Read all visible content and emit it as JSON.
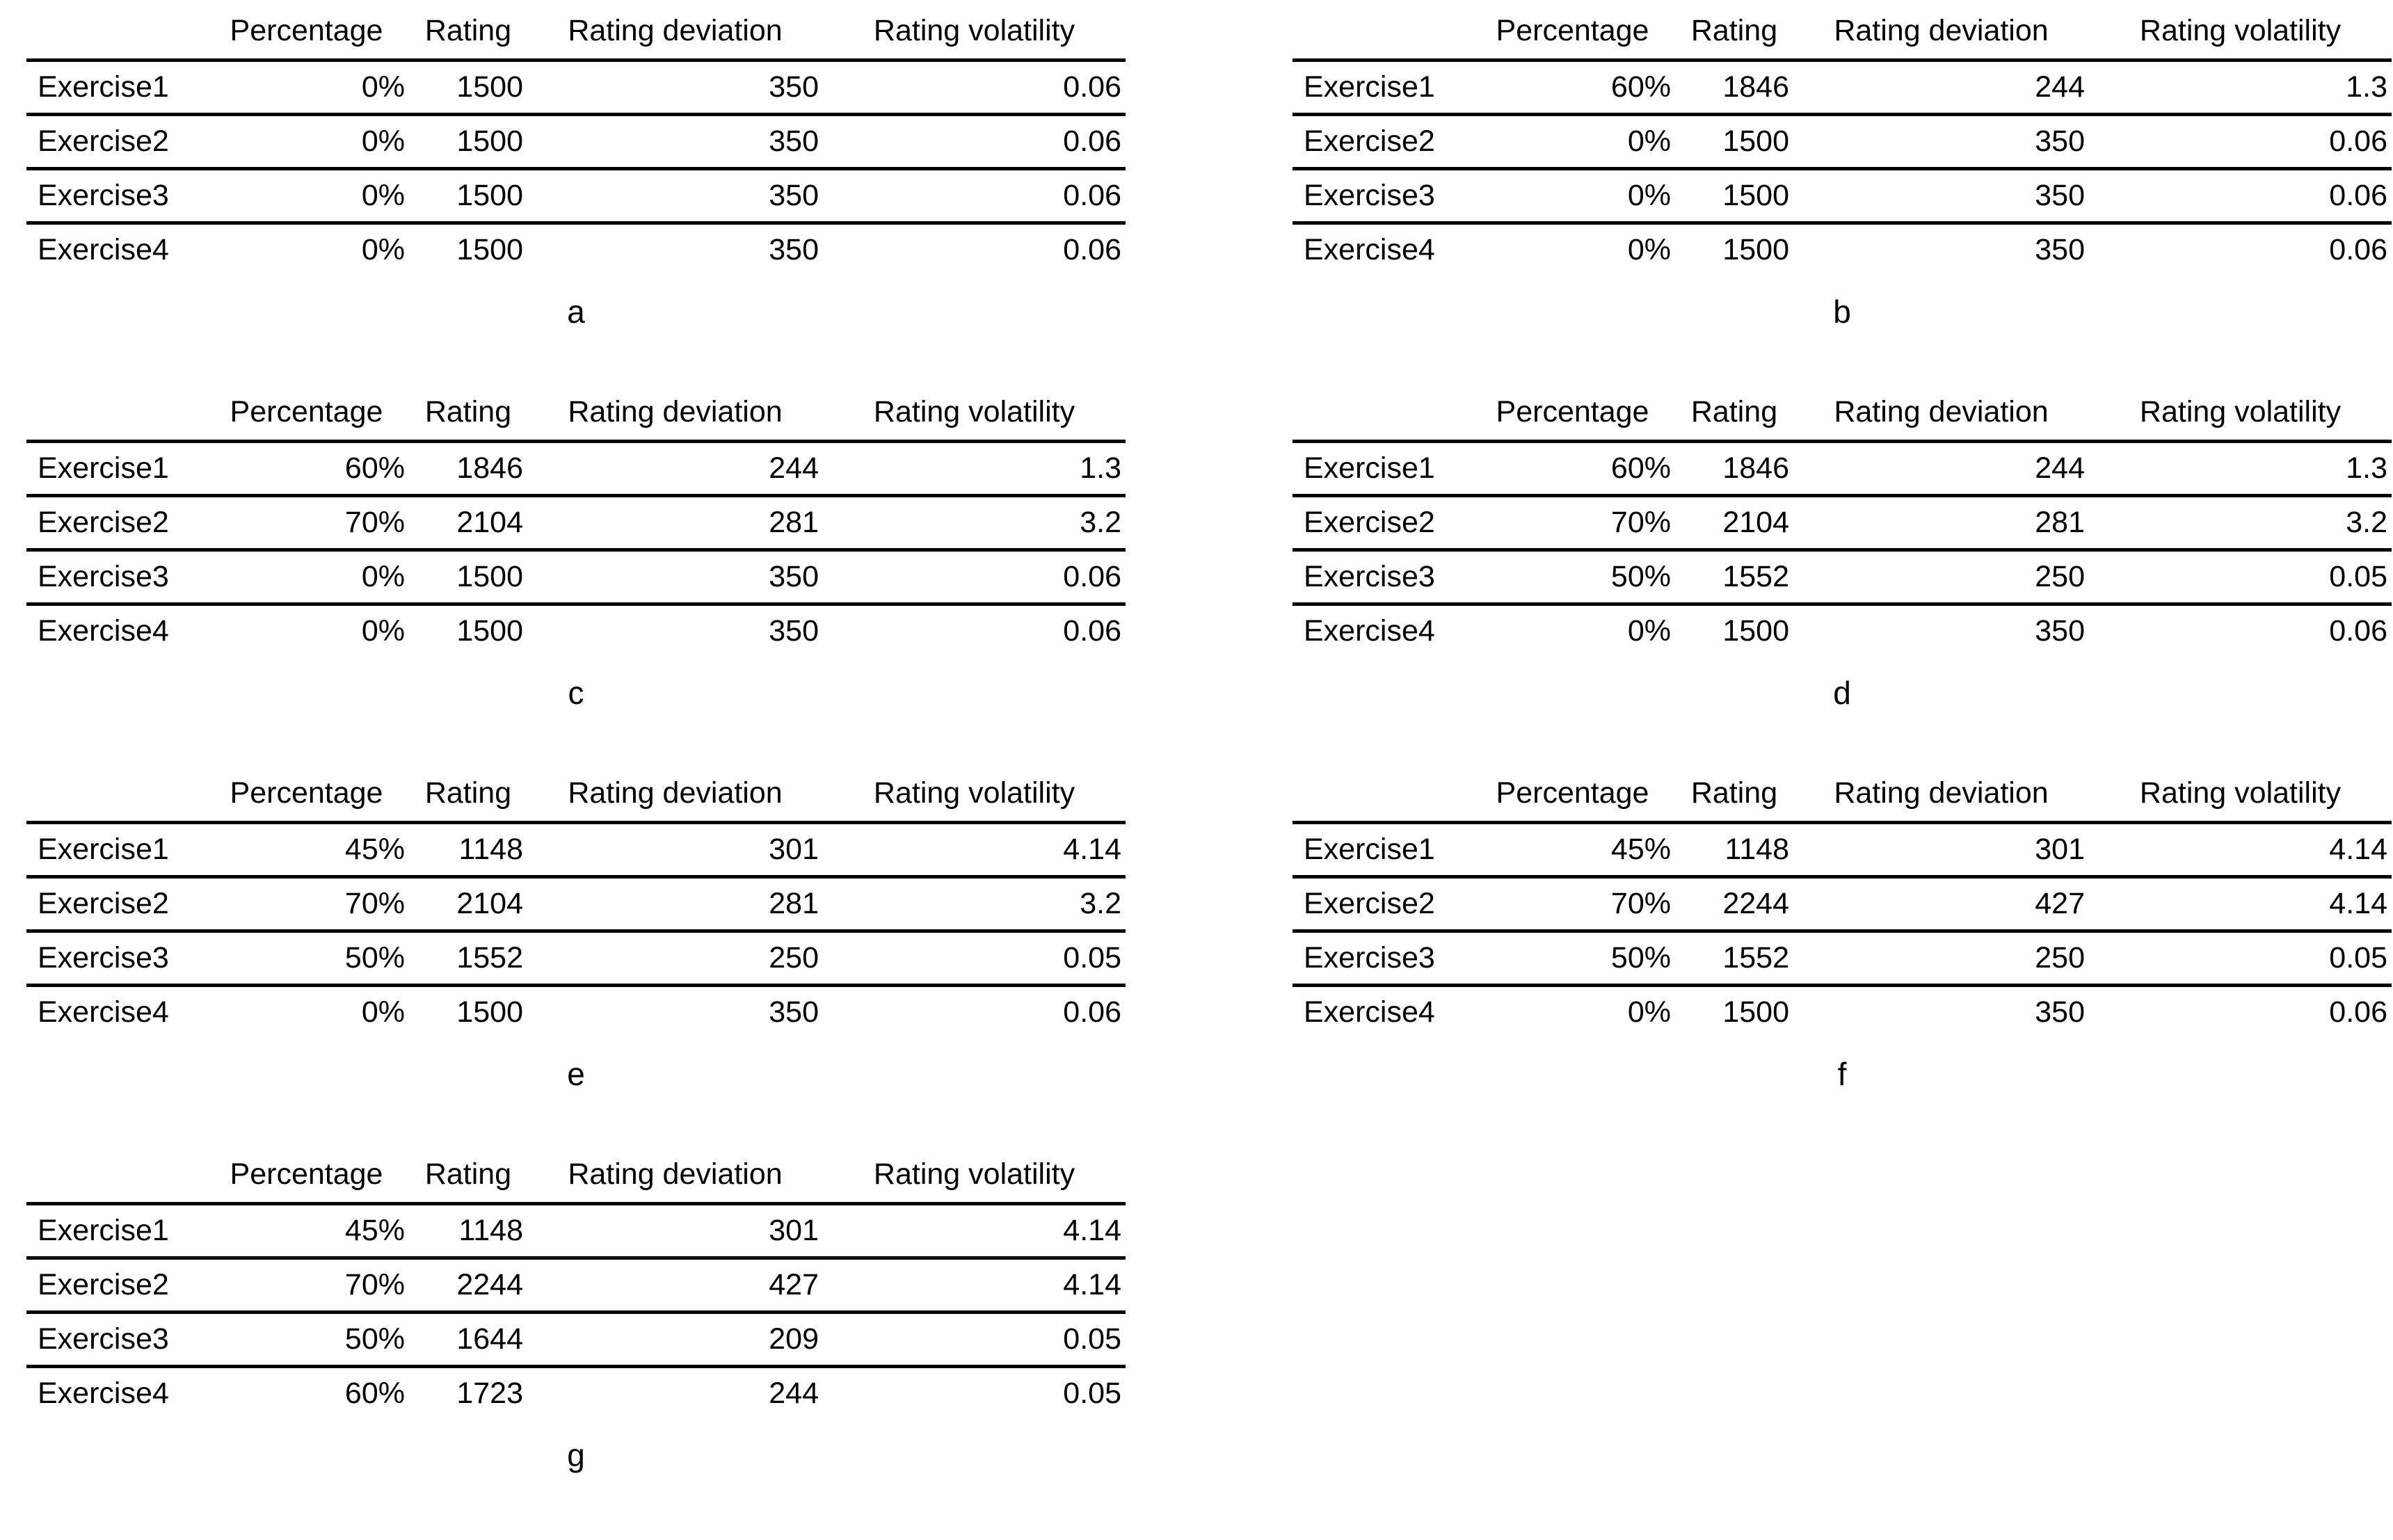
{
  "chart_data": {
    "type": "table",
    "column_headers": [
      "Percentage",
      "Rating",
      "Rating deviation",
      "Rating volatility"
    ],
    "row_header_column": "",
    "tables": [
      {
        "label": "a",
        "rows": [
          [
            "Exercise1",
            "0%",
            "1500",
            "350",
            "0.06"
          ],
          [
            "Exercise2",
            "0%",
            "1500",
            "350",
            "0.06"
          ],
          [
            "Exercise3",
            "0%",
            "1500",
            "350",
            "0.06"
          ],
          [
            "Exercise4",
            "0%",
            "1500",
            "350",
            "0.06"
          ]
        ]
      },
      {
        "label": "b",
        "rows": [
          [
            "Exercise1",
            "60%",
            "1846",
            "244",
            "1.3"
          ],
          [
            "Exercise2",
            "0%",
            "1500",
            "350",
            "0.06"
          ],
          [
            "Exercise3",
            "0%",
            "1500",
            "350",
            "0.06"
          ],
          [
            "Exercise4",
            "0%",
            "1500",
            "350",
            "0.06"
          ]
        ]
      },
      {
        "label": "c",
        "rows": [
          [
            "Exercise1",
            "60%",
            "1846",
            "244",
            "1.3"
          ],
          [
            "Exercise2",
            "70%",
            "2104",
            "281",
            "3.2"
          ],
          [
            "Exercise3",
            "0%",
            "1500",
            "350",
            "0.06"
          ],
          [
            "Exercise4",
            "0%",
            "1500",
            "350",
            "0.06"
          ]
        ]
      },
      {
        "label": "d",
        "rows": [
          [
            "Exercise1",
            "60%",
            "1846",
            "244",
            "1.3"
          ],
          [
            "Exercise2",
            "70%",
            "2104",
            "281",
            "3.2"
          ],
          [
            "Exercise3",
            "50%",
            "1552",
            "250",
            "0.05"
          ],
          [
            "Exercise4",
            "0%",
            "1500",
            "350",
            "0.06"
          ]
        ]
      },
      {
        "label": "e",
        "rows": [
          [
            "Exercise1",
            "45%",
            "1148",
            "301",
            "4.14"
          ],
          [
            "Exercise2",
            "70%",
            "2104",
            "281",
            "3.2"
          ],
          [
            "Exercise3",
            "50%",
            "1552",
            "250",
            "0.05"
          ],
          [
            "Exercise4",
            "0%",
            "1500",
            "350",
            "0.06"
          ]
        ]
      },
      {
        "label": "f",
        "rows": [
          [
            "Exercise1",
            "45%",
            "1148",
            "301",
            "4.14"
          ],
          [
            "Exercise2",
            "70%",
            "2244",
            "427",
            "4.14"
          ],
          [
            "Exercise3",
            "50%",
            "1552",
            "250",
            "0.05"
          ],
          [
            "Exercise4",
            "0%",
            "1500",
            "350",
            "0.06"
          ]
        ]
      },
      {
        "label": "g",
        "rows": [
          [
            "Exercise1",
            "45%",
            "1148",
            "301",
            "4.14"
          ],
          [
            "Exercise2",
            "70%",
            "2244",
            "427",
            "4.14"
          ],
          [
            "Exercise3",
            "50%",
            "1644",
            "209",
            "0.05"
          ],
          [
            "Exercise4",
            "60%",
            "1723",
            "244",
            "0.05"
          ]
        ]
      }
    ]
  }
}
